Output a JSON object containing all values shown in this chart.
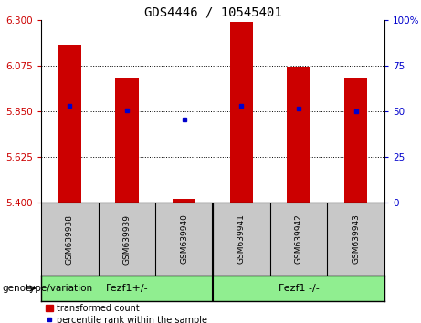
{
  "title": "GDS4446 / 10545401",
  "samples": [
    "GSM639938",
    "GSM639939",
    "GSM639940",
    "GSM639941",
    "GSM639942",
    "GSM639943"
  ],
  "red_values": [
    6.18,
    6.01,
    5.42,
    6.29,
    6.07,
    6.01
  ],
  "blue_values": [
    5.875,
    5.855,
    5.81,
    5.878,
    5.862,
    5.852
  ],
  "y_min": 5.4,
  "y_max": 6.3,
  "y_ticks_left": [
    5.4,
    5.625,
    5.85,
    6.075,
    6.3
  ],
  "y_ticks_right": [
    0,
    25,
    50,
    75,
    100
  ],
  "hlines": [
    5.625,
    5.85,
    6.075
  ],
  "group1_label": "Fezf1+/-",
  "group2_label": "Fezf1 -/-",
  "group_color": "#90EE90",
  "genotype_label": "genotype/variation",
  "bar_color": "#CC0000",
  "dot_color": "#0000CC",
  "bar_width": 0.4,
  "label_color_left": "#CC0000",
  "label_color_right": "#0000CC",
  "legend_red_label": "transformed count",
  "legend_blue_label": "percentile rank within the sample",
  "title_fontsize": 10,
  "tick_fontsize": 7.5,
  "sample_fontsize": 6.5,
  "group_fontsize": 8,
  "legend_fontsize": 7,
  "genotype_fontsize": 7.5
}
